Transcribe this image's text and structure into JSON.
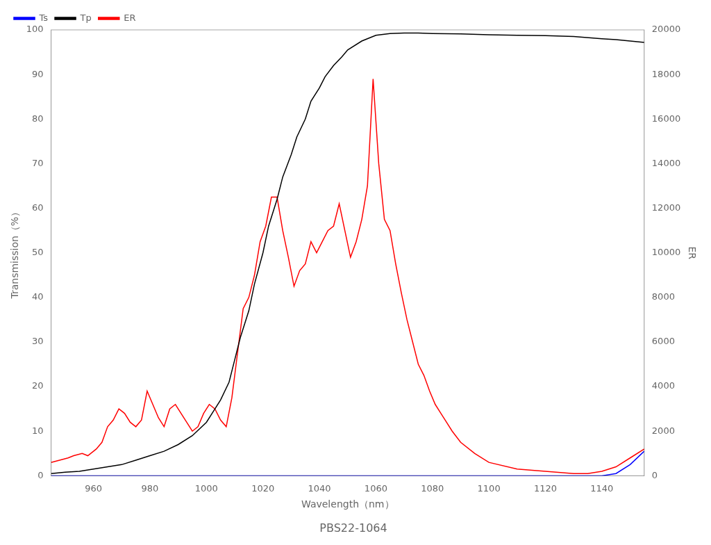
{
  "chart_data": {
    "type": "line",
    "title": "PBS22-1064",
    "xlabel": "Wavelength（nm）",
    "ylabel": "Transmission（%）",
    "y2label": "ER",
    "xlim": [
      945,
      1155
    ],
    "ylim": [
      0,
      100
    ],
    "y2lim": [
      0,
      20000
    ],
    "xticks": [
      960,
      980,
      1000,
      1020,
      1040,
      1060,
      1080,
      1100,
      1120,
      1140
    ],
    "yticks": [
      0,
      10,
      20,
      30,
      40,
      50,
      60,
      70,
      80,
      90,
      100
    ],
    "y2ticks": [
      0,
      2000,
      4000,
      6000,
      8000,
      10000,
      12000,
      14000,
      16000,
      18000,
      20000
    ],
    "grid": false,
    "legend": "upper left",
    "series": [
      {
        "name": "Ts",
        "color": "blue",
        "x": [
          945,
          950,
          960,
          970,
          980,
          990,
          1000,
          1010,
          1020,
          1030,
          1040,
          1050,
          1060,
          1070,
          1080,
          1090,
          1100,
          1110,
          1120,
          1130,
          1135,
          1140,
          1145,
          1150,
          1155
        ],
        "values": [
          0,
          0,
          0,
          0,
          0,
          0,
          0,
          0,
          0,
          0,
          0,
          0,
          0,
          0,
          0,
          0,
          0,
          0,
          0,
          0,
          0,
          0,
          0.5,
          2.5,
          5.5
        ]
      },
      {
        "name": "Tp",
        "color": "black",
        "x": [
          945,
          950,
          955,
          960,
          965,
          970,
          975,
          980,
          985,
          990,
          995,
          1000,
          1002,
          1005,
          1008,
          1010,
          1012,
          1015,
          1017,
          1020,
          1022,
          1025,
          1027,
          1030,
          1032,
          1035,
          1037,
          1040,
          1042,
          1045,
          1048,
          1050,
          1055,
          1060,
          1065,
          1070,
          1075,
          1080,
          1090,
          1100,
          1110,
          1120,
          1130,
          1140,
          1145,
          1150,
          1155
        ],
        "values": [
          0.5,
          0.8,
          1.0,
          1.5,
          2.0,
          2.5,
          3.5,
          4.5,
          5.5,
          7.0,
          9.0,
          12.0,
          14.0,
          17.0,
          21.0,
          26.0,
          31.0,
          37.0,
          43.0,
          50.0,
          56.0,
          62.0,
          67.0,
          72.0,
          76.0,
          80.0,
          84.0,
          87.0,
          89.5,
          92.0,
          94.0,
          95.5,
          97.5,
          98.8,
          99.2,
          99.3,
          99.3,
          99.2,
          99.1,
          98.9,
          98.8,
          98.7,
          98.5,
          98.0,
          97.8,
          97.5,
          97.2
        ]
      },
      {
        "name": "ER",
        "color": "red",
        "axis": "y2",
        "x": [
          945,
          948,
          951,
          953,
          956,
          958,
          961,
          963,
          965,
          967,
          969,
          971,
          973,
          975,
          977,
          979,
          981,
          983,
          985,
          987,
          989,
          991,
          993,
          995,
          997,
          999,
          1001,
          1003,
          1005,
          1007,
          1009,
          1011,
          1013,
          1015,
          1017,
          1019,
          1021,
          1023,
          1025,
          1027,
          1029,
          1031,
          1033,
          1035,
          1037,
          1039,
          1041,
          1043,
          1045,
          1047,
          1049,
          1051,
          1053,
          1055,
          1057,
          1059,
          1061,
          1063,
          1065,
          1067,
          1069,
          1071,
          1073,
          1075,
          1077,
          1079,
          1081,
          1083,
          1085,
          1087,
          1090,
          1095,
          1100,
          1110,
          1120,
          1130,
          1135,
          1140,
          1145,
          1150,
          1155
        ],
        "values": [
          600,
          700,
          800,
          900,
          1000,
          900,
          1200,
          1500,
          2200,
          2500,
          3000,
          2800,
          2400,
          2200,
          2500,
          3800,
          3200,
          2600,
          2200,
          3000,
          3200,
          2800,
          2400,
          2000,
          2200,
          2800,
          3200,
          3000,
          2500,
          2200,
          3500,
          5500,
          7500,
          8000,
          9000,
          10500,
          11200,
          12500,
          12500,
          11000,
          9800,
          8500,
          9200,
          9500,
          10500,
          10000,
          10500,
          11000,
          11200,
          12200,
          11000,
          9800,
          10500,
          11500,
          13000,
          17800,
          14000,
          11500,
          11000,
          9500,
          8200,
          7000,
          6000,
          5000,
          4500,
          3800,
          3200,
          2800,
          2400,
          2000,
          1500,
          1000,
          600,
          300,
          200,
          100,
          100,
          200,
          400,
          800,
          1200
        ]
      }
    ]
  }
}
